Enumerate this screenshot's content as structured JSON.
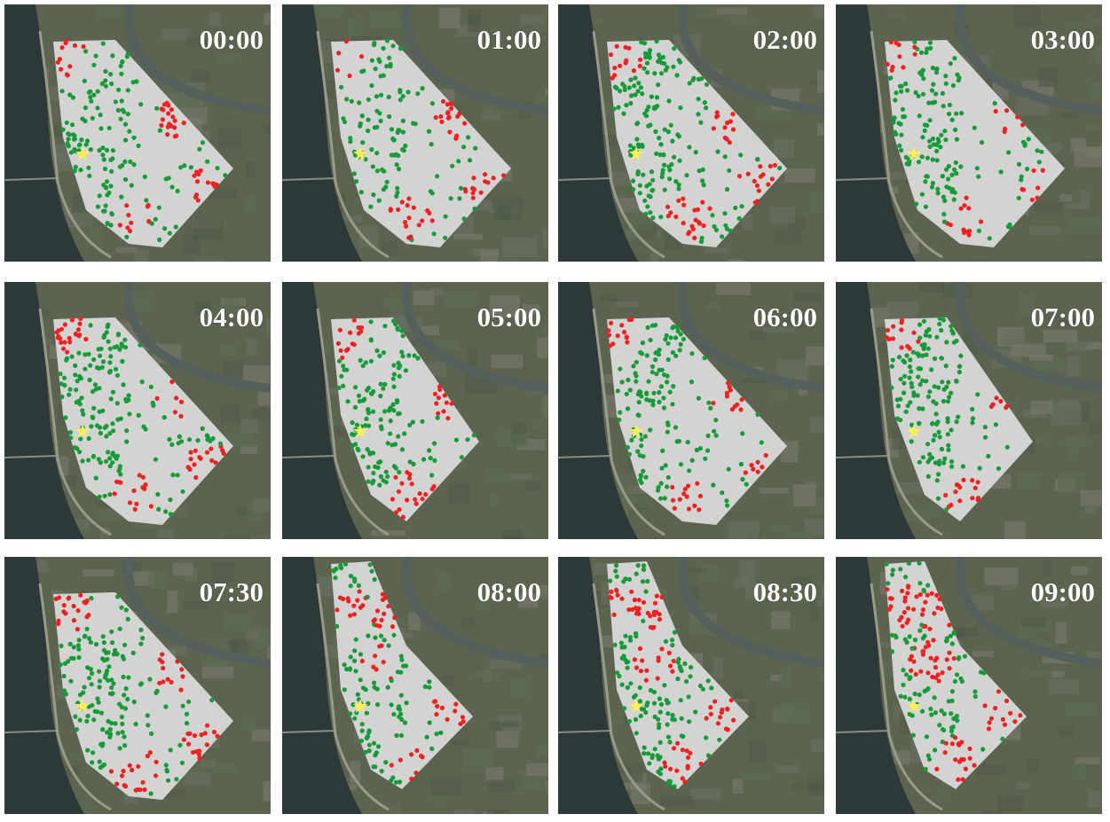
{
  "panels": [
    {
      "label": "00:00"
    },
    {
      "label": "01:00"
    },
    {
      "label": "02:00"
    },
    {
      "label": "03:00"
    },
    {
      "label": "04:00"
    },
    {
      "label": "05:00"
    },
    {
      "label": "06:00"
    },
    {
      "label": "07:00"
    },
    {
      "label": "07:30"
    },
    {
      "label": "08:00"
    },
    {
      "label": "08:30"
    },
    {
      "label": "09:00"
    }
  ]
}
